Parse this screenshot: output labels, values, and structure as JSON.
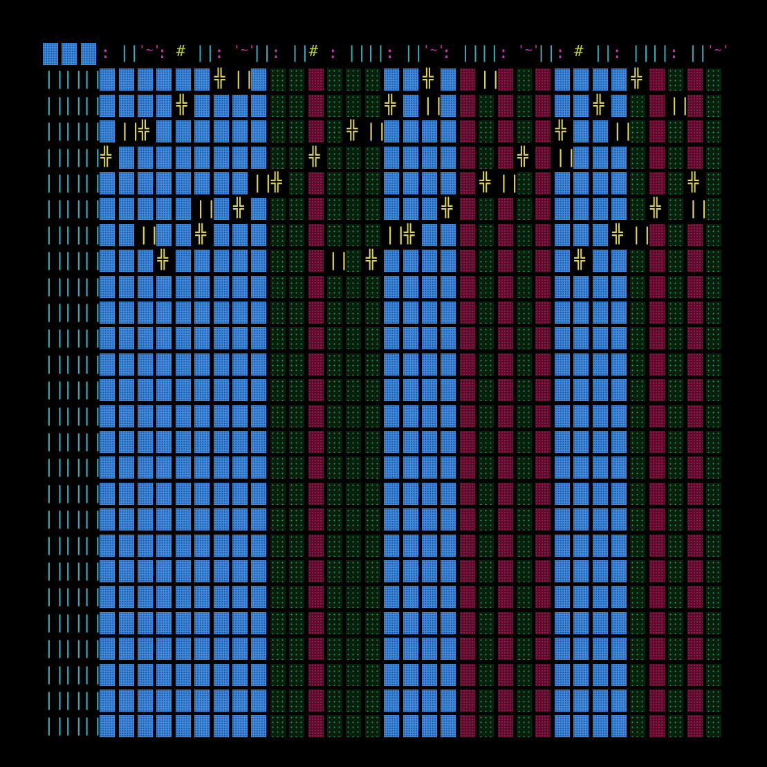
{
  "palette": {
    "background": "#000000",
    "block_blue": "#3f8be0",
    "block_green": "#0d3a1a",
    "block_maroon": "#6a0f33",
    "rail_teal": "#3fa7b5",
    "glyph_yellow": "#d8d060",
    "glyph_magenta": "#c03ca8",
    "glyph_lime": "#b8c840"
  },
  "glyphs": {
    "rail": "||",
    "cross": "╬",
    "bar": "|",
    "hash": "#",
    "tilde_face": "'~'",
    "dots": ":",
    "ellipsis": ".."
  },
  "columns": [
    "BBB B B B B B B B B B B B B B B B B B B B B B B B B B B",
    "........................................................"
  ]
}
